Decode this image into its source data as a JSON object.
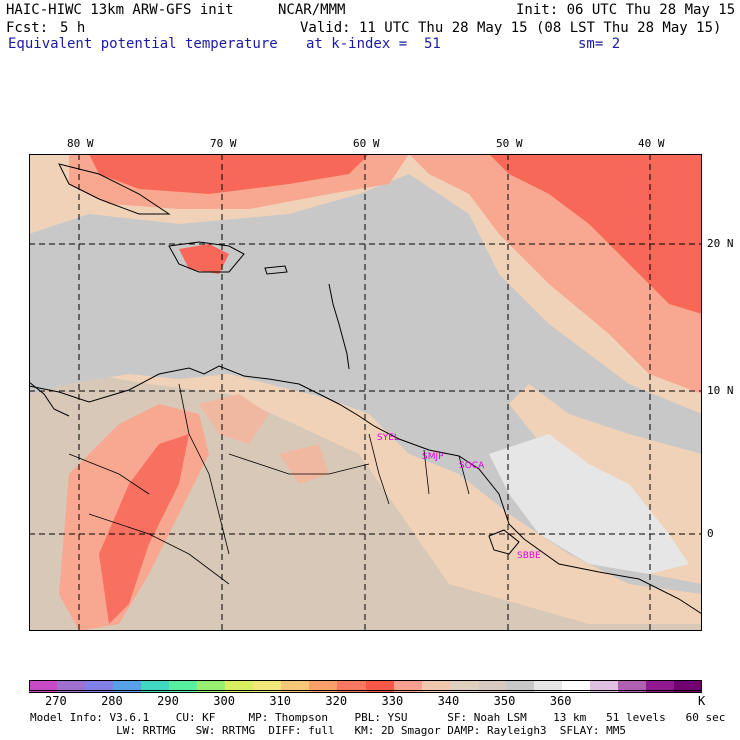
{
  "header": {
    "title": "HAIC-HIWC 13km ARW-GFS init",
    "org": "NCAR/MMM",
    "init": "Init: 06 UTC Thu 28 May 15",
    "fcst_label": "Fcst:",
    "fcst_value": "5 h",
    "valid": "Valid: 11 UTC Thu 28 May 15 (08 LST Thu 28 May 15)",
    "field": "Equivalent potential temperature",
    "level": "at k-index =  51",
    "smooth": "sm= 2"
  },
  "map": {
    "lon_labels": [
      "80 W",
      "70 W",
      "60 W",
      "50 W",
      "40 W"
    ],
    "lat_labels": [
      "20 N",
      "10 N",
      "0"
    ],
    "stations": [
      "SYEL",
      "SMJP",
      "SOCA",
      "SBBE"
    ],
    "palette": {
      "land_base": "#d8c8b8",
      "ocean_gray": "#c8c8c8",
      "peach": "#f0d2b8",
      "salmon": "#f8a890",
      "red": "#f86858",
      "deep_red": "#f85050",
      "white": "#f4f4f4",
      "magenta_text": "#e000e0"
    }
  },
  "colorbar": {
    "colors": [
      "#c84ac8",
      "#a070d0",
      "#8080e8",
      "#58a0e8",
      "#40d8c0",
      "#58f0a0",
      "#98f070",
      "#d8f060",
      "#f0e878",
      "#f8c878",
      "#f8a068",
      "#f87860",
      "#f85848",
      "#f8a090",
      "#f0c8b0",
      "#e0d0c0",
      "#d8cac0",
      "#c8c8c8",
      "#e6e6e6",
      "#ffffff",
      "#e0c0e0",
      "#b060b0",
      "#901890",
      "#700070"
    ],
    "labels": [
      "270",
      "280",
      "290",
      "300",
      "310",
      "320",
      "330",
      "340",
      "350",
      "360"
    ],
    "unit": "K"
  },
  "model_info": {
    "line1": "Model Info: V3.6.1    CU: KF     MP: Thompson    PBL: YSU      SF: Noah LSM    13 km   51 levels   60 sec",
    "line2": "             LW: RRTMG   SW: RRTMG  DIFF: full   KM: 2D Smagor DAMP: Rayleigh3  SFLAY: MM5"
  }
}
